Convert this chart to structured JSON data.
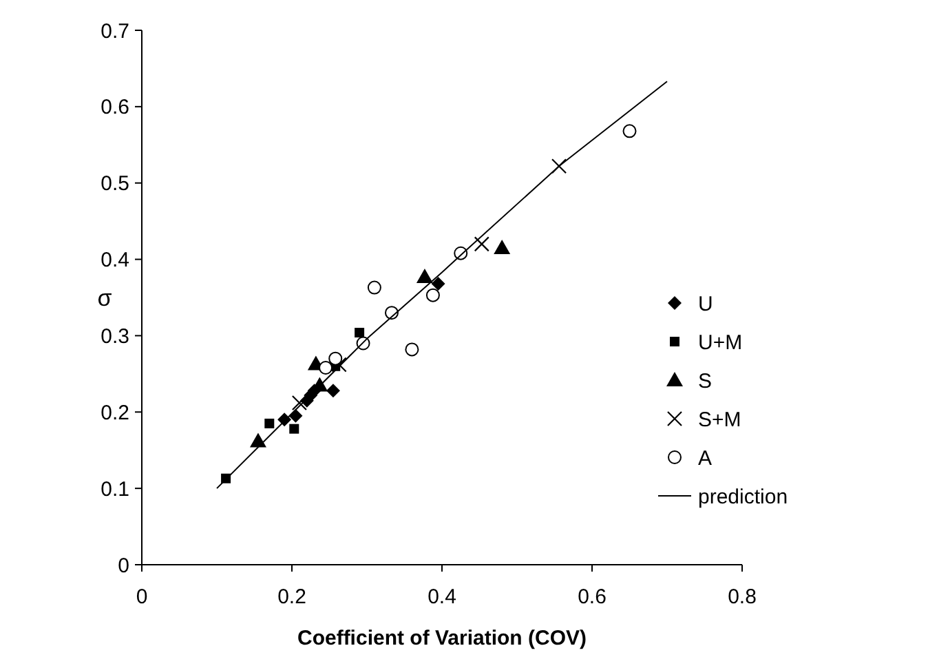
{
  "chart_data": {
    "type": "scatter",
    "xlabel": "Coefficient of Variation (COV)",
    "ylabel": "σ",
    "xlim": [
      0,
      0.8
    ],
    "xticks": [
      0,
      0.2,
      0.4,
      0.6,
      0.8
    ],
    "ylim": [
      0,
      0.7
    ],
    "yticks": [
      0,
      0.1,
      0.2,
      0.3,
      0.4,
      0.5,
      0.6,
      0.7
    ],
    "grid": false,
    "legend": "right",
    "series": [
      {
        "name": "U",
        "color": "#000000",
        "marker": "diamond",
        "x": [
          0.19,
          0.205,
          0.22,
          0.225,
          0.23,
          0.255,
          0.395
        ],
        "values": [
          0.19,
          0.195,
          0.215,
          0.222,
          0.228,
          0.228,
          0.368
        ]
      },
      {
        "name": "U+M",
        "color": "#000000",
        "marker": "square",
        "x": [
          0.112,
          0.17,
          0.203,
          0.258,
          0.29
        ],
        "values": [
          0.113,
          0.185,
          0.178,
          0.26,
          0.304
        ]
      },
      {
        "name": "S",
        "color": "#000000",
        "marker": "triangle",
        "x": [
          0.155,
          0.232,
          0.237,
          0.377,
          0.48
        ],
        "values": [
          0.162,
          0.263,
          0.235,
          0.377,
          0.415
        ]
      },
      {
        "name": "S+M",
        "color": "#000000",
        "marker": "cross",
        "x": [
          0.21,
          0.263,
          0.453,
          0.556
        ],
        "values": [
          0.212,
          0.262,
          0.42,
          0.522
        ]
      },
      {
        "name": "A",
        "color": "#000000",
        "marker": "circle",
        "x": [
          0.245,
          0.258,
          0.295,
          0.31,
          0.333,
          0.36,
          0.388,
          0.425,
          0.65
        ],
        "values": [
          0.258,
          0.27,
          0.29,
          0.363,
          0.33,
          0.282,
          0.353,
          0.408,
          0.568
        ]
      },
      {
        "name": "prediction",
        "type": "line",
        "color": "#000000",
        "marker": "none",
        "line_style": "solid",
        "x": [
          0.1,
          0.2,
          0.3,
          0.4,
          0.43,
          0.556,
          0.7
        ],
        "values": [
          0.1,
          0.198,
          0.296,
          0.383,
          0.41,
          0.522,
          0.633
        ]
      }
    ]
  }
}
